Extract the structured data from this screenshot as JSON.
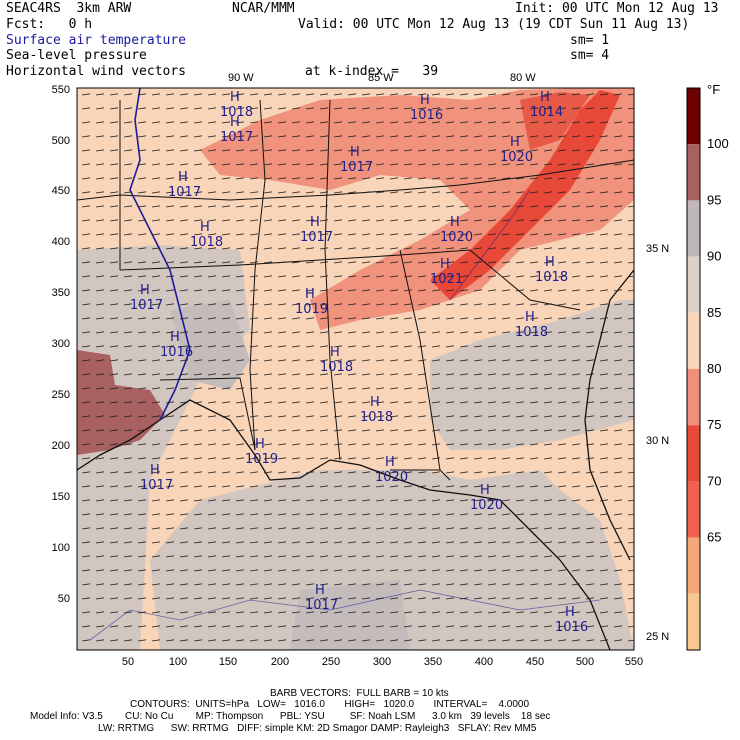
{
  "header": {
    "model": "SEAC4RS  3km ARW",
    "org": "NCAR/MMM",
    "init": "Init: 00 UTC Mon 12 Aug 13",
    "fcst": "Fcst:   0 h",
    "valid": "Valid: 00 UTC Mon 12 Aug 13 (19 CDT Sun 11 Aug 13)",
    "field1": "Surface air temperature",
    "field1_sm": "sm= 1",
    "field2": "Sea-level pressure",
    "field2_sm": "sm= 4",
    "field3": "Horizontal wind vectors",
    "level": "at k-index =   39"
  },
  "map": {
    "lon_labels": [
      "90 W",
      "85 W",
      "80 W"
    ],
    "lat_labels": [
      "35 N",
      "30 N",
      "25 N"
    ],
    "x_ticks": [
      "50",
      "100",
      "150",
      "200",
      "250",
      "300",
      "350",
      "400",
      "450",
      "500",
      "550"
    ],
    "y_ticks": [
      "550",
      "500",
      "450",
      "400",
      "350",
      "300",
      "250",
      "200",
      "150",
      "100",
      "50"
    ],
    "highs": [
      {
        "name": "high-center",
        "label": "H",
        "value": "1018"
      },
      {
        "name": "high-center",
        "label": "H",
        "value": "1017"
      },
      {
        "name": "high-center",
        "label": "H",
        "value": "1016"
      },
      {
        "name": "high-center",
        "label": "H",
        "value": "1014"
      },
      {
        "name": "high-center",
        "label": "H",
        "value": "1017"
      },
      {
        "name": "high-center",
        "label": "H",
        "value": "1017"
      },
      {
        "name": "high-center",
        "label": "H",
        "value": "1018"
      },
      {
        "name": "high-center",
        "label": "H",
        "value": "1017"
      },
      {
        "name": "high-center",
        "label": "H",
        "value": "1020"
      },
      {
        "name": "high-center",
        "label": "H",
        "value": "1020"
      },
      {
        "name": "high-center",
        "label": "H",
        "value": "1021"
      },
      {
        "name": "high-center",
        "label": "H",
        "value": "1018"
      },
      {
        "name": "high-center",
        "label": "H",
        "value": "1017"
      },
      {
        "name": "high-center",
        "label": "H",
        "value": "1019"
      },
      {
        "name": "high-center",
        "label": "H",
        "value": "1018"
      },
      {
        "name": "high-center",
        "label": "H",
        "value": "1016"
      },
      {
        "name": "high-center",
        "label": "H",
        "value": "1018"
      },
      {
        "name": "high-center",
        "label": "H",
        "value": "1018"
      },
      {
        "name": "high-center",
        "label": "H",
        "value": "1019"
      },
      {
        "name": "high-center",
        "label": "H",
        "value": "1020"
      },
      {
        "name": "high-center",
        "label": "H",
        "value": "1017"
      },
      {
        "name": "high-center",
        "label": "H",
        "value": "1020"
      },
      {
        "name": "high-center",
        "label": "H",
        "value": "1017"
      },
      {
        "name": "high-center",
        "label": "H",
        "value": "1016"
      }
    ]
  },
  "colorbar": {
    "unit": "°F",
    "labels": [
      "100",
      "95",
      "90",
      "85",
      "80",
      "75",
      "70",
      "65"
    ],
    "colors": [
      "#6e0000",
      "#a86060",
      "#c0b8b8",
      "#dcd0c8",
      "#f8d4b8",
      "#f0907a",
      "#e84838",
      "#f0604c",
      "#f4a878",
      "#f8c890"
    ]
  },
  "footer": {
    "barb": "BARB VECTORS:  FULL BARB = 10 kts",
    "contours": "CONTOURS:  UNITS=hPa   LOW=   1016.0       HIGH=   1020.0       INTERVAL=    4.0000",
    "model_line": "Model Info: V3.5        CU: No Cu        MP: Thompson      PBL: YSU         SF: Noah LSM      3.0 km   39 levels    18 sec",
    "phys_line": "LW: RRTMG      SW: RRTMG   DIFF: simple KM: 2D Smagor DAMP: Rayleigh3   SFLAY: Rev MM5"
  }
}
